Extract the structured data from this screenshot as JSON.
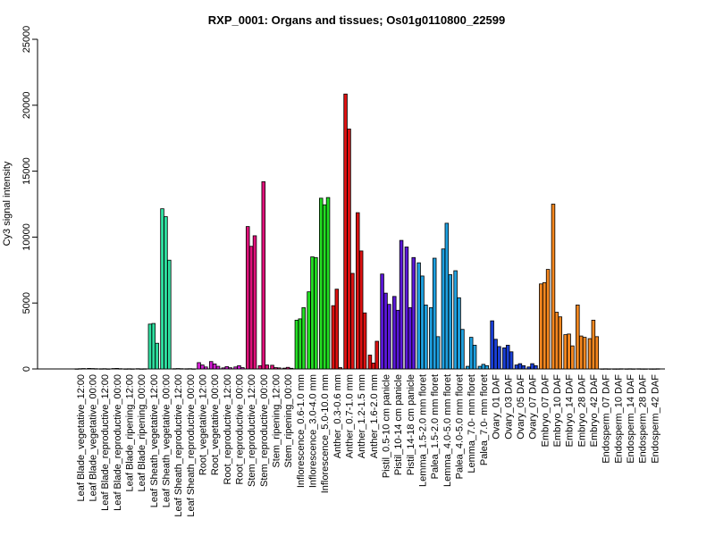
{
  "chart_data": {
    "type": "bar",
    "title": "RXP_0001: Organs and tissues; Os01g0110800_22599",
    "ylabel": "Cy3 signal intensity",
    "xlabel": "",
    "ylim": [
      0,
      25000
    ],
    "yticks": [
      0,
      5000,
      10000,
      15000,
      20000,
      25000
    ],
    "grid": false,
    "legend": "none",
    "groups": [
      {
        "label": "Leaf Blade_vegetative_12:00",
        "color": "#1f3aa6",
        "values": [
          10,
          20,
          30
        ]
      },
      {
        "label": "Leaf Blade_vegetative_00:00",
        "color": "#1f3aa6",
        "values": [
          40,
          30,
          20
        ]
      },
      {
        "label": "Leaf Blade_reproductive_12:00",
        "color": "#1f3aa6",
        "values": [
          15,
          20,
          10
        ]
      },
      {
        "label": "Leaf Blade_reproductive_00:00",
        "color": "#1f3aa6",
        "values": [
          30,
          40,
          20
        ]
      },
      {
        "label": "Leaf Blade_ripening_12:00",
        "color": "#1f3aa6",
        "values": [
          10,
          15,
          10
        ]
      },
      {
        "label": "Leaf Blade_ripening_00:00",
        "color": "#1f3aa6",
        "values": [
          20,
          10,
          15
        ]
      },
      {
        "label": "Leaf Sheath_vegetative_12:00",
        "color": "#2fe0a0",
        "values": [
          3400,
          3450,
          1950
        ]
      },
      {
        "label": "Leaf Sheath_vegetative_00:00",
        "color": "#2fe0a0",
        "values": [
          12150,
          11550,
          8250
        ]
      },
      {
        "label": "Leaf Sheath_reproductive_12:00",
        "color": "#2fe0a0",
        "values": [
          20,
          30,
          20
        ]
      },
      {
        "label": "Leaf Sheath_reproductive_00:00",
        "color": "#2fe0a0",
        "values": [
          15,
          20,
          10
        ]
      },
      {
        "label": "Root_vegetative_12:00",
        "color": "#d21ed2",
        "values": [
          480,
          300,
          150
        ]
      },
      {
        "label": "Root_vegetative_00:00",
        "color": "#d21ed2",
        "values": [
          560,
          380,
          200
        ]
      },
      {
        "label": "Root_reproductive_12:00",
        "color": "#d21ed2",
        "values": [
          80,
          180,
          90
        ]
      },
      {
        "label": "Root_reproductive_00:00",
        "color": "#d21ed2",
        "values": [
          150,
          250,
          100
        ]
      },
      {
        "label": "Stem_reproductive_12:00",
        "color": "#e0107a",
        "values": [
          10800,
          9300,
          10100
        ]
      },
      {
        "label": "Stem_reproductive_00:00",
        "color": "#e0107a",
        "values": [
          250,
          14200,
          300
        ]
      },
      {
        "label": "Stem_ripening_12:00",
        "color": "#e0107a",
        "values": [
          280,
          100,
          80
        ]
      },
      {
        "label": "Stem_ripening_00:00",
        "color": "#e0107a",
        "values": [
          60,
          120,
          50
        ]
      },
      {
        "label": "Inflorescence_0.6-1.0 mm",
        "color": "#22dd22",
        "values": [
          3700,
          3800,
          4650
        ]
      },
      {
        "label": "Inflorescence_3.0-4.0 mm",
        "color": "#22dd22",
        "values": [
          5850,
          8500,
          8450
        ]
      },
      {
        "label": "Inflorescence_5.0-10.0 mm",
        "color": "#22dd22",
        "values": [
          12950,
          12450,
          13000
        ]
      },
      {
        "label": "Anther_0.3-0.6 mm",
        "color": "#dd1111",
        "values": [
          4800,
          6050,
          100
        ]
      },
      {
        "label": "Anther_0.7-1.0 mm",
        "color": "#dd1111",
        "values": [
          20850,
          18200,
          7250
        ]
      },
      {
        "label": "Anther_1.2-1.5 mm",
        "color": "#dd1111",
        "values": [
          11850,
          8950,
          4250
        ]
      },
      {
        "label": "Anther_1.6-2.0 mm",
        "color": "#dd1111",
        "values": [
          1050,
          450,
          2100
        ]
      },
      {
        "label": "Pistil_0.5-10 cm panicle",
        "color": "#5a18d8",
        "values": [
          7200,
          5750,
          4900
        ]
      },
      {
        "label": "Pistil_10-14 cm panicle",
        "color": "#5a18d8",
        "values": [
          5500,
          4450,
          9750
        ]
      },
      {
        "label": "Pistil_14-18 cm panicle",
        "color": "#5a18d8",
        "values": [
          9250,
          4650,
          8450
        ]
      },
      {
        "label": "Lemma_1.5-2.0 mm floret",
        "color": "#1ea0e0",
        "values": [
          8050,
          7050,
          4850
        ]
      },
      {
        "label": "Palea_1.5-2.0 mm floret",
        "color": "#1ea0e0",
        "values": [
          4650,
          8400,
          2450
        ]
      },
      {
        "label": "Lemma_4.0-5.0 mm floret",
        "color": "#1ea0e0",
        "values": [
          9100,
          11050,
          7150
        ]
      },
      {
        "label": "Palea_4.0-5.0 mm floret",
        "color": "#1ea0e0",
        "values": [
          7450,
          5400,
          3000
        ]
      },
      {
        "label": "Lemma_7.0- mm floret",
        "color": "#1ea0e0",
        "values": [
          200,
          2400,
          1800
        ]
      },
      {
        "label": "Palea_7.0- mm floret",
        "color": "#1ea0e0",
        "values": [
          200,
          350,
          250
        ]
      },
      {
        "label": "Ovary_01 DAF",
        "color": "#1a3fd6",
        "values": [
          3650,
          2250,
          1700
        ]
      },
      {
        "label": "Ovary_03 DAF",
        "color": "#1a3fd6",
        "values": [
          1600,
          1800,
          1300
        ]
      },
      {
        "label": "Ovary_05 DAF",
        "color": "#1a3fd6",
        "values": [
          300,
          400,
          250
        ]
      },
      {
        "label": "Ovary_07 DAF",
        "color": "#1a3fd6",
        "values": [
          150,
          400,
          250
        ]
      },
      {
        "label": "Embryo_07 DAF",
        "color": "#f5871f",
        "values": [
          6450,
          6550,
          7550
        ]
      },
      {
        "label": "Embryo_10 DAF",
        "color": "#f5871f",
        "values": [
          12500,
          4300,
          3950
        ]
      },
      {
        "label": "Embryo_14 DAF",
        "color": "#f5871f",
        "values": [
          2600,
          2650,
          1750
        ]
      },
      {
        "label": "Embryo_28 DAF",
        "color": "#f5871f",
        "values": [
          4850,
          2500,
          2400
        ]
      },
      {
        "label": "Embryo_42 DAF",
        "color": "#f5871f",
        "values": [
          2300,
          3700,
          2450
        ]
      },
      {
        "label": "Endosperm_07 DAF",
        "color": "#1f3aa6",
        "values": [
          10,
          15,
          10
        ]
      },
      {
        "label": "Endosperm_10 DAF",
        "color": "#1f3aa6",
        "values": [
          10,
          10,
          15
        ]
      },
      {
        "label": "Endosperm_14 DAF",
        "color": "#1f3aa6",
        "values": [
          10,
          15,
          10
        ]
      },
      {
        "label": "Endosperm_28 DAF",
        "color": "#1f3aa6",
        "values": [
          15,
          10,
          10
        ]
      },
      {
        "label": "Endosperm_42 DAF",
        "color": "#1f3aa6",
        "values": [
          10,
          10,
          15
        ]
      }
    ]
  }
}
